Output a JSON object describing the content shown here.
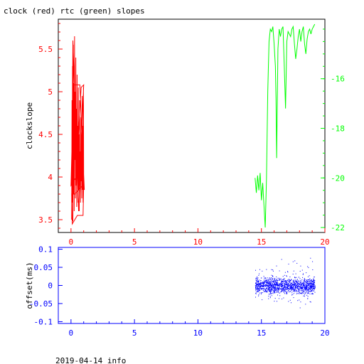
{
  "title": "clock (red) rtc (green) slopes",
  "footer": "2019-04-14 info",
  "colors": {
    "clock": "#ff0000",
    "rtc": "#00ff00",
    "offset": "#0000ff",
    "frame": "#000000"
  },
  "chart_data": [
    {
      "type": "line",
      "title": "clock (red) rtc (green) slopes",
      "xlabel": "",
      "ylabel": "clockslope",
      "xlim": [
        -1,
        20
      ],
      "ylim": [
        3.35,
        5.85
      ],
      "y2lim": [
        -22.2,
        -13.6
      ],
      "x_ticks": [
        0,
        5,
        10,
        15,
        20
      ],
      "y_ticks": [
        3.5,
        4,
        4.5,
        5,
        5.5
      ],
      "y2_ticks": [
        -22,
        -20,
        -18,
        -16
      ],
      "x_tick_labels": [
        "0",
        "5",
        "10",
        "15",
        "20"
      ],
      "y_tick_labels": [
        "3.5",
        "4",
        "4.5",
        "5",
        "5.5"
      ],
      "y2_tick_labels": [
        "-22",
        "-20",
        "-18",
        "-16"
      ],
      "series": [
        {
          "axis": "left",
          "x": [
            0.05,
            0.08,
            0.1,
            0.12,
            0.15,
            0.18,
            0.2,
            0.22,
            0.25,
            0.28,
            0.3,
            0.32,
            0.35,
            0.38,
            0.4,
            0.42,
            0.45,
            0.48,
            0.5,
            0.52,
            0.55,
            0.58,
            0.6,
            0.62,
            0.65,
            0.68,
            0.7,
            0.72,
            0.75,
            0.78,
            0.8,
            0.82,
            0.85,
            0.88,
            0.9,
            0.92,
            0.95,
            0.98,
            1.0,
            0.95,
            0.5,
            0.1,
            0.05,
            0.3,
            0.6,
            0.9,
            1.05,
            0.7,
            0.2,
            0.0,
            0.4,
            0.8,
            1.0,
            0.6,
            0.15,
            0.05
          ],
          "y": [
            3.52,
            4.9,
            3.7,
            5.3,
            3.48,
            5.55,
            3.8,
            5.1,
            3.6,
            5.65,
            4.2,
            5.0,
            3.75,
            5.4,
            3.9,
            4.8,
            3.65,
            5.2,
            4.0,
            4.6,
            3.7,
            5.05,
            3.85,
            4.5,
            3.6,
            4.9,
            3.9,
            4.3,
            3.7,
            4.7,
            3.95,
            4.4,
            3.75,
            4.95,
            3.85,
            4.6,
            3.7,
            5.05,
            3.9,
            3.55,
            3.55,
            3.45,
            3.8,
            3.8,
            3.85,
            3.9,
            3.85,
            5.08,
            5.08,
            3.9,
            4.0,
            5.05,
            5.08,
            3.6,
            5.6,
            3.5
          ]
        },
        {
          "axis": "right",
          "x": [
            14.5,
            14.6,
            14.7,
            14.8,
            14.9,
            15.0,
            15.1,
            15.2,
            15.3,
            15.4,
            15.5,
            15.6,
            15.7,
            15.8,
            15.9,
            16.0,
            16.1,
            16.15,
            16.2,
            16.3,
            16.4,
            16.5,
            16.6,
            16.7,
            16.8,
            16.9,
            17.0,
            17.1,
            17.2,
            17.3,
            17.4,
            17.5,
            17.6,
            17.7,
            17.8,
            17.9,
            18.0,
            18.1,
            18.2,
            18.3,
            18.4,
            18.5,
            18.6,
            18.7,
            18.8,
            18.9,
            19.0,
            19.1,
            19.2
          ],
          "y": [
            -20.0,
            -20.6,
            -19.9,
            -20.5,
            -19.8,
            -20.9,
            -20.2,
            -21.1,
            -22.0,
            -20.0,
            -16.5,
            -14.5,
            -14.0,
            -14.1,
            -13.9,
            -14.6,
            -15.5,
            -16.8,
            -19.2,
            -14.8,
            -14.0,
            -14.3,
            -14.0,
            -13.9,
            -15.5,
            -17.2,
            -14.5,
            -14.1,
            -14.2,
            -14.3,
            -14.0,
            -13.9,
            -14.6,
            -15.2,
            -14.8,
            -14.3,
            -14.0,
            -14.5,
            -14.1,
            -13.9,
            -14.6,
            -15.0,
            -14.4,
            -14.1,
            -14.0,
            -14.2,
            -14.0,
            -13.9,
            -13.8
          ]
        }
      ]
    },
    {
      "type": "scatter",
      "xlabel": "",
      "ylabel": "offset(ms)",
      "xlim": [
        -1,
        20
      ],
      "ylim": [
        -0.105,
        0.105
      ],
      "x_ticks": [
        0,
        5,
        10,
        15,
        20
      ],
      "y_ticks": [
        -0.1,
        -0.05,
        0,
        0.05,
        0.1
      ],
      "x_tick_labels": [
        "0",
        "5",
        "10",
        "15",
        "20"
      ],
      "y_tick_labels": [
        "-0.1",
        "-0.05",
        "0",
        "0.05",
        "0.1"
      ],
      "series": [
        {
          "x_range": [
            14.5,
            19.2
          ],
          "center": 0.0,
          "typical_spread": 0.03,
          "max_spread": 0.09
        }
      ]
    }
  ]
}
